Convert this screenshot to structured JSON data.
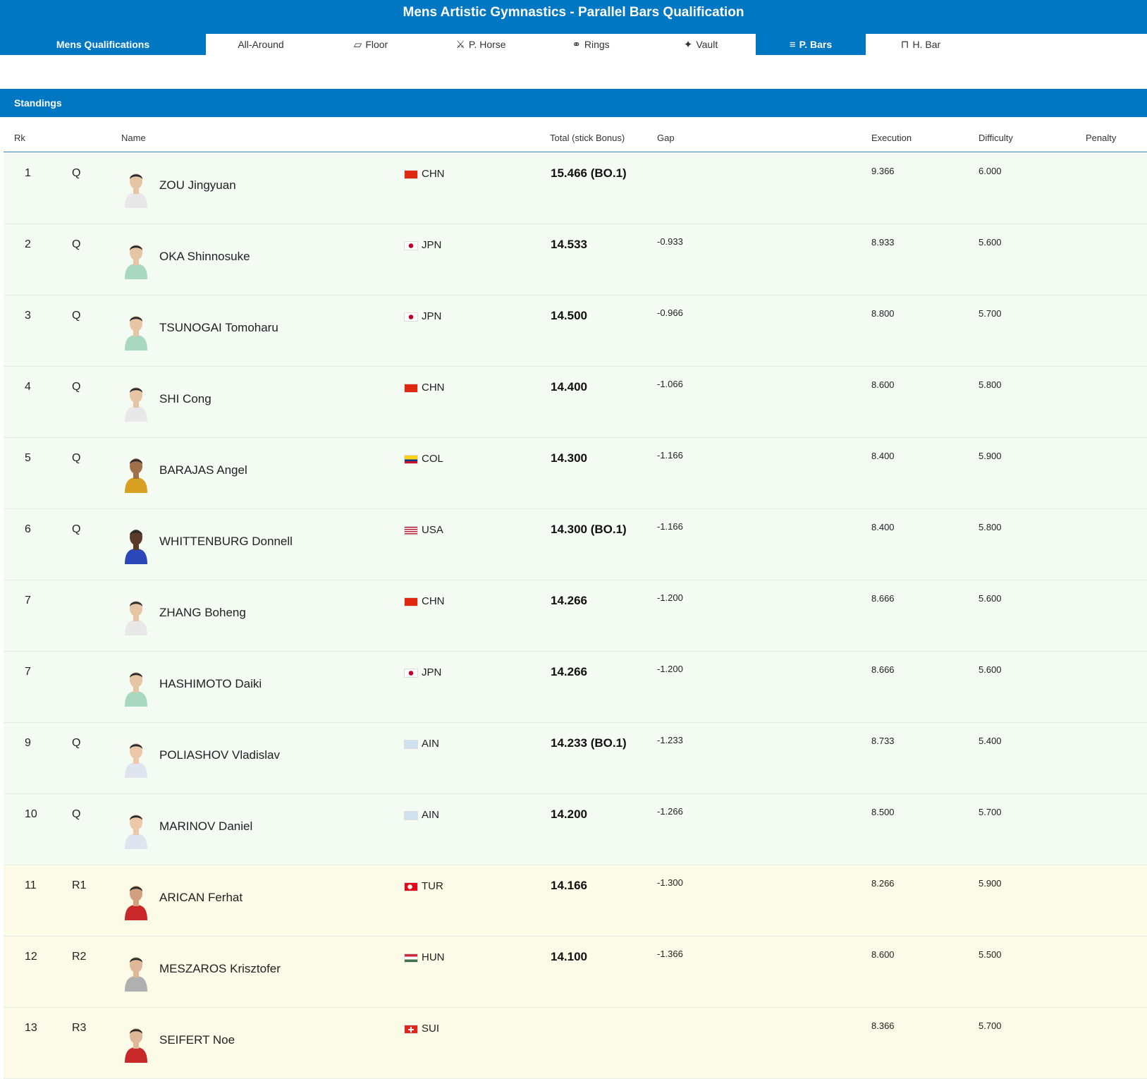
{
  "title": "Mens Artistic Gymnastics - Parallel Bars Qualification",
  "tabs": [
    {
      "label": "Mens Qualifications",
      "icon": "",
      "active": true
    },
    {
      "label": "All-Around",
      "icon": "",
      "active": false
    },
    {
      "label": "Floor",
      "icon": "floor-icon",
      "active": false
    },
    {
      "label": "P. Horse",
      "icon": "pommel-horse-icon",
      "active": false
    },
    {
      "label": "Rings",
      "icon": "rings-icon",
      "active": false
    },
    {
      "label": "Vault",
      "icon": "vault-icon",
      "active": false
    },
    {
      "label": "P. Bars",
      "icon": "parallel-bars-icon",
      "active": true
    },
    {
      "label": "H. Bar",
      "icon": "high-bar-icon",
      "active": false
    }
  ],
  "standings_label": "Standings",
  "columns": {
    "rk": "Rk",
    "name": "Name",
    "total": "Total (stick Bonus)",
    "gap": "Gap",
    "execution": "Execution",
    "difficulty": "Difficulty",
    "penalty": "Penalty"
  },
  "colors": {
    "accent": "#0077c2",
    "qualified_row": "#f3fbf3",
    "reserve_row": "#fcfbe8"
  },
  "rows": [
    {
      "rk": "1",
      "q": "Q",
      "name": "ZOU Jingyuan",
      "noc": "CHN",
      "total": "15.466 (BO.1)",
      "gap": "",
      "ex": "9.366",
      "df": "6.000",
      "pen": "",
      "kit": "#e8e8e8",
      "skin": "#e6c4a4",
      "reserve": false
    },
    {
      "rk": "2",
      "q": "Q",
      "name": "OKA Shinnosuke",
      "noc": "JPN",
      "total": "14.533",
      "gap": "-0.933",
      "ex": "8.933",
      "df": "5.600",
      "pen": "",
      "kit": "#a8d8c0",
      "skin": "#e6c4a4",
      "reserve": false
    },
    {
      "rk": "3",
      "q": "Q",
      "name": "TSUNOGAI Tomoharu",
      "noc": "JPN",
      "total": "14.500",
      "gap": "-0.966",
      "ex": "8.800",
      "df": "5.700",
      "pen": "",
      "kit": "#a8d8c0",
      "skin": "#e6c4a4",
      "reserve": false
    },
    {
      "rk": "4",
      "q": "Q",
      "name": "SHI Cong",
      "noc": "CHN",
      "total": "14.400",
      "gap": "-1.066",
      "ex": "8.600",
      "df": "5.800",
      "pen": "",
      "kit": "#e8e8e8",
      "skin": "#e6c4a4",
      "reserve": false
    },
    {
      "rk": "5",
      "q": "Q",
      "name": "BARAJAS Angel",
      "noc": "COL",
      "total": "14.300",
      "gap": "-1.166",
      "ex": "8.400",
      "df": "5.900",
      "pen": "",
      "kit": "#d8a020",
      "skin": "#a0704a",
      "reserve": false
    },
    {
      "rk": "6",
      "q": "Q",
      "name": "WHITTENBURG Donnell",
      "noc": "USA",
      "total": "14.300 (BO.1)",
      "gap": "-1.166",
      "ex": "8.400",
      "df": "5.800",
      "pen": "",
      "kit": "#2a48b8",
      "skin": "#5a3a28",
      "reserve": false
    },
    {
      "rk": "7",
      "q": "",
      "name": "ZHANG Boheng",
      "noc": "CHN",
      "total": "14.266",
      "gap": "-1.200",
      "ex": "8.666",
      "df": "5.600",
      "pen": "",
      "kit": "#e8e8e8",
      "skin": "#e6c4a4",
      "reserve": false
    },
    {
      "rk": "7",
      "q": "",
      "name": "HASHIMOTO Daiki",
      "noc": "JPN",
      "total": "14.266",
      "gap": "-1.200",
      "ex": "8.666",
      "df": "5.600",
      "pen": "",
      "kit": "#a8d8c0",
      "skin": "#e6c4a4",
      "reserve": false
    },
    {
      "rk": "9",
      "q": "Q",
      "name": "POLIASHOV Vladislav",
      "noc": "AIN",
      "total": "14.233 (BO.1)",
      "gap": "-1.233",
      "ex": "8.733",
      "df": "5.400",
      "pen": "",
      "kit": "#dfe4ee",
      "skin": "#ecc8a8",
      "reserve": false
    },
    {
      "rk": "10",
      "q": "Q",
      "name": "MARINOV Daniel",
      "noc": "AIN",
      "total": "14.200",
      "gap": "-1.266",
      "ex": "8.500",
      "df": "5.700",
      "pen": "",
      "kit": "#dfe4ee",
      "skin": "#ecc8a8",
      "reserve": false
    },
    {
      "rk": "11",
      "q": "R1",
      "name": "ARICAN Ferhat",
      "noc": "TUR",
      "total": "14.166",
      "gap": "-1.300",
      "ex": "8.266",
      "df": "5.900",
      "pen": "",
      "kit": "#c82828",
      "skin": "#d0a080",
      "reserve": true
    },
    {
      "rk": "12",
      "q": "R2",
      "name": "MESZAROS Krisztofer",
      "noc": "HUN",
      "total": "14.100",
      "gap": "-1.366",
      "ex": "8.600",
      "df": "5.500",
      "pen": "",
      "kit": "#b0b0b0",
      "skin": "#e0b898",
      "reserve": true
    },
    {
      "rk": "13",
      "q": "R3",
      "name": "SEIFERT Noe",
      "noc": "SUI",
      "total": "",
      "gap": "",
      "ex": "8.366",
      "df": "5.700",
      "pen": "",
      "kit": "#c82828",
      "skin": "#e0b898",
      "reserve": true
    }
  ]
}
